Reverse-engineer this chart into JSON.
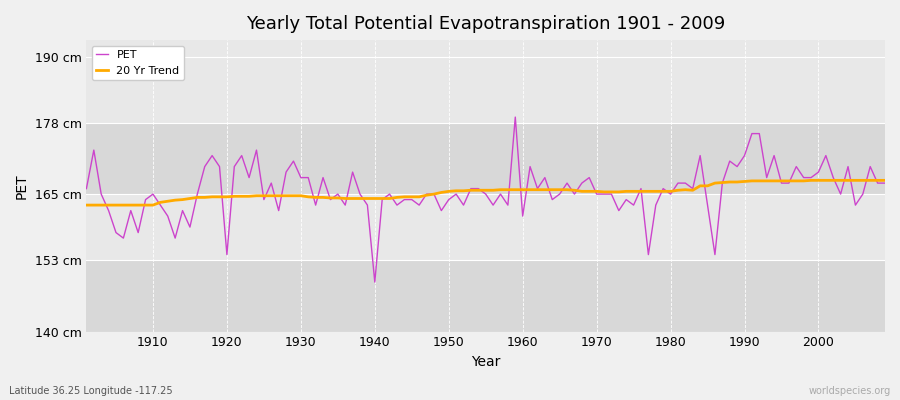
{
  "title": "Yearly Total Potential Evapotranspiration 1901 - 2009",
  "xlabel": "Year",
  "ylabel": "PET",
  "bottom_left_label": "Latitude 36.25 Longitude -117.25",
  "bottom_right_label": "worldspecies.org",
  "pet_color": "#cc44cc",
  "trend_color": "#ffaa00",
  "fig_bg_color": "#f0f0f0",
  "plot_bg_color": "#e8e8e8",
  "alt_band_color": "#d8d8d8",
  "grid_color": "#cccccc",
  "ylim": [
    140,
    193
  ],
  "yticks": [
    140,
    153,
    165,
    178,
    190
  ],
  "ytick_labels": [
    "140 cm",
    "153 cm",
    "165 cm",
    "178 cm",
    "190 cm"
  ],
  "xticks": [
    1910,
    1920,
    1930,
    1940,
    1950,
    1960,
    1970,
    1980,
    1990,
    2000
  ],
  "xlim": [
    1901,
    2009
  ],
  "years": [
    1901,
    1902,
    1903,
    1904,
    1905,
    1906,
    1907,
    1908,
    1909,
    1910,
    1911,
    1912,
    1913,
    1914,
    1915,
    1916,
    1917,
    1918,
    1919,
    1920,
    1921,
    1922,
    1923,
    1924,
    1925,
    1926,
    1927,
    1928,
    1929,
    1930,
    1931,
    1932,
    1933,
    1934,
    1935,
    1936,
    1937,
    1938,
    1939,
    1940,
    1941,
    1942,
    1943,
    1944,
    1945,
    1946,
    1947,
    1948,
    1949,
    1950,
    1951,
    1952,
    1953,
    1954,
    1955,
    1956,
    1957,
    1958,
    1959,
    1960,
    1961,
    1962,
    1963,
    1964,
    1965,
    1966,
    1967,
    1968,
    1969,
    1970,
    1971,
    1972,
    1973,
    1974,
    1975,
    1976,
    1977,
    1978,
    1979,
    1980,
    1981,
    1982,
    1983,
    1984,
    1985,
    1986,
    1987,
    1988,
    1989,
    1990,
    1991,
    1992,
    1993,
    1994,
    1995,
    1996,
    1997,
    1998,
    1999,
    2000,
    2001,
    2002,
    2003,
    2004,
    2005,
    2006,
    2007,
    2008,
    2009
  ],
  "pet_values": [
    166,
    173,
    165,
    162,
    158,
    157,
    162,
    158,
    164,
    165,
    163,
    161,
    157,
    162,
    159,
    165,
    170,
    172,
    170,
    154,
    170,
    172,
    168,
    173,
    164,
    167,
    162,
    169,
    171,
    168,
    168,
    163,
    168,
    164,
    165,
    163,
    169,
    165,
    163,
    149,
    164,
    165,
    163,
    164,
    164,
    163,
    165,
    165,
    162,
    164,
    165,
    163,
    166,
    166,
    165,
    163,
    165,
    163,
    179,
    161,
    170,
    166,
    168,
    164,
    165,
    167,
    165,
    167,
    168,
    165,
    165,
    165,
    162,
    164,
    163,
    166,
    154,
    163,
    166,
    165,
    167,
    167,
    166,
    172,
    163,
    154,
    167,
    171,
    170,
    172,
    176,
    176,
    168,
    172,
    167,
    167,
    170,
    168,
    168,
    169,
    172,
    168,
    165,
    170,
    163,
    165,
    170,
    167,
    167
  ],
  "trend_values": [
    163.0,
    163.0,
    163.0,
    163.0,
    163.0,
    163.0,
    163.0,
    163.0,
    163.0,
    163.0,
    163.5,
    163.7,
    163.9,
    164.0,
    164.2,
    164.4,
    164.4,
    164.5,
    164.5,
    164.5,
    164.6,
    164.6,
    164.6,
    164.7,
    164.7,
    164.7,
    164.7,
    164.7,
    164.7,
    164.7,
    164.5,
    164.4,
    164.4,
    164.3,
    164.3,
    164.2,
    164.2,
    164.2,
    164.2,
    164.2,
    164.2,
    164.2,
    164.4,
    164.5,
    164.5,
    164.5,
    164.8,
    165.0,
    165.3,
    165.5,
    165.6,
    165.6,
    165.7,
    165.7,
    165.7,
    165.7,
    165.8,
    165.8,
    165.8,
    165.8,
    165.8,
    165.8,
    165.8,
    165.8,
    165.8,
    165.8,
    165.7,
    165.5,
    165.5,
    165.5,
    165.4,
    165.4,
    165.4,
    165.5,
    165.5,
    165.5,
    165.5,
    165.5,
    165.5,
    165.5,
    165.7,
    165.8,
    165.7,
    166.5,
    166.5,
    167.0,
    167.1,
    167.2,
    167.2,
    167.3,
    167.4,
    167.4,
    167.4,
    167.4,
    167.4,
    167.4,
    167.4,
    167.4,
    167.5,
    167.5,
    167.5,
    167.5,
    167.5,
    167.5,
    167.5,
    167.5,
    167.5,
    167.5,
    167.5
  ]
}
